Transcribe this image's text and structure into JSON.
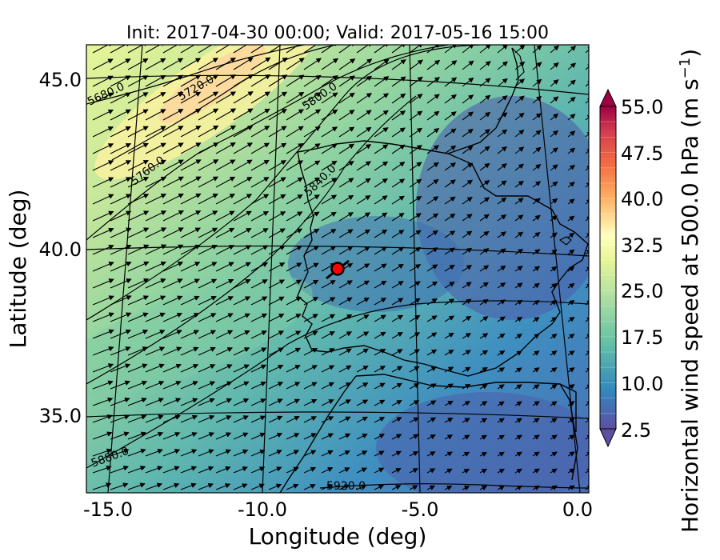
{
  "title": "Init: 2017-04-30 00:00; Valid: 2017-05-16 15:00",
  "xlabel": "Longitude (deg)",
  "ylabel": "Latitude (deg)",
  "colorbar_label_main": "Horizontal wind speed at 500.0 hPa (m s",
  "colorbar_label_sup": "−1",
  "colorbar_label_end": ")",
  "x_ticks": [
    "-15.0",
    "-10.0",
    "-5.0",
    "0.0"
  ],
  "y_ticks": [
    "45.0",
    "40.0",
    "35.0"
  ],
  "colorbar_ticks": [
    "55.0",
    "47.5",
    "40.0",
    "32.5",
    "25.0",
    "17.5",
    "10.0",
    "2.5"
  ],
  "contour_labels": [
    "5680.0",
    "5720.0",
    "5800.0",
    "5760.0",
    "5840.0",
    "5880.0",
    "5920.0"
  ],
  "marker": {
    "name": "site",
    "lon": -7.6,
    "lat": 39.3,
    "color": "#ff0000"
  },
  "map_extent": {
    "lon": [
      -16,
      0.3
    ],
    "lat": [
      32.6,
      46.2
    ]
  },
  "colorbar": {
    "min": 2.5,
    "max": 55.0,
    "step": 2.5,
    "colormap": "Spectral_r",
    "extend": "both"
  },
  "colors": {
    "c_low": "#5e4fa2",
    "c_blue": "#3288bd",
    "c_teal": "#66c2a5",
    "c_green": "#abdda4",
    "c_yellow": "#e6f598",
    "c_pale": "#ffffbf",
    "c_orange": "#fdae61",
    "c_red": "#d53e4f",
    "c_high": "#9e0142"
  }
}
